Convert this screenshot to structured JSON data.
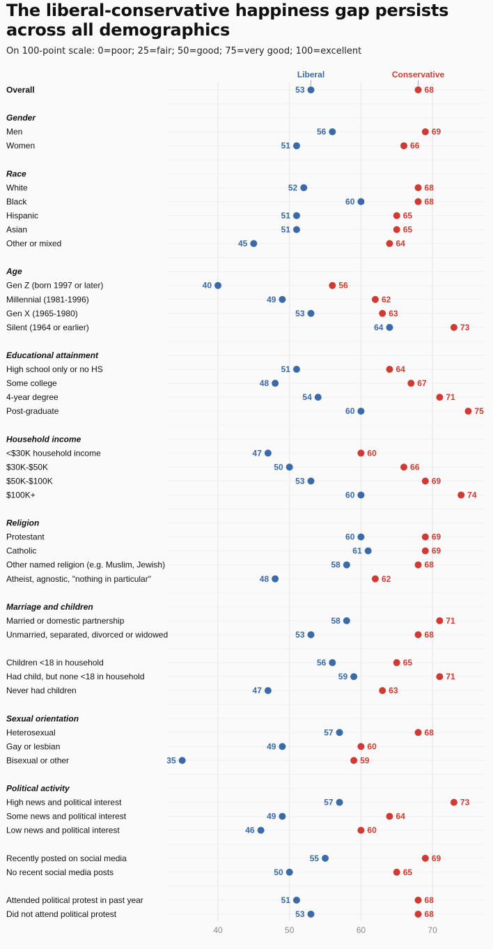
{
  "header": {
    "title": "The liberal-conservative happiness gap persists across all demographics",
    "subtitle": "On 100-point scale: 0=poor; 25=fair; 50=good; 75=very good; 100=excellent"
  },
  "colors": {
    "liberal": "#3a6aa8",
    "conservative": "#cf3b33",
    "grid": "#e3e3e3",
    "row_line": "#efefef"
  },
  "chart_data": {
    "type": "dumbbell",
    "title": "The liberal-conservative happiness gap persists across all demographics",
    "subtitle": "On 100-point scale: 0=poor; 25=fair; 50=good; 75=very good; 100=excellent",
    "xlim": [
      32.5,
      77.5
    ],
    "x_ticks": [
      40,
      50,
      60,
      70
    ],
    "grid": true,
    "legend": {
      "liberal": "Liberal",
      "conservative": "Conservative",
      "placement": "top, above first row"
    },
    "rows": [
      {
        "type": "row",
        "label": "Overall",
        "bold": true,
        "liberal": 53,
        "conservative": 68
      },
      {
        "type": "spacer"
      },
      {
        "type": "group",
        "label": "Gender"
      },
      {
        "type": "row",
        "label": "Men",
        "liberal": 56,
        "conservative": 69
      },
      {
        "type": "row",
        "label": "Women",
        "liberal": 51,
        "conservative": 66
      },
      {
        "type": "spacer"
      },
      {
        "type": "group",
        "label": "Race"
      },
      {
        "type": "row",
        "label": "White",
        "liberal": 52,
        "conservative": 68
      },
      {
        "type": "row",
        "label": "Black",
        "liberal": 60,
        "conservative": 68
      },
      {
        "type": "row",
        "label": "Hispanic",
        "liberal": 51,
        "conservative": 65
      },
      {
        "type": "row",
        "label": "Asian",
        "liberal": 51,
        "conservative": 65
      },
      {
        "type": "row",
        "label": "Other or mixed",
        "liberal": 45,
        "conservative": 64
      },
      {
        "type": "spacer"
      },
      {
        "type": "group",
        "label": "Age"
      },
      {
        "type": "row",
        "label": "Gen Z (born 1997 or later)",
        "liberal": 40,
        "conservative": 56
      },
      {
        "type": "row",
        "label": "Millennial (1981-1996)",
        "liberal": 49,
        "conservative": 62
      },
      {
        "type": "row",
        "label": "Gen X (1965-1980)",
        "liberal": 53,
        "conservative": 63
      },
      {
        "type": "row",
        "label": "Silent (1964 or earlier)",
        "liberal": 64,
        "conservative": 73
      },
      {
        "type": "spacer"
      },
      {
        "type": "group",
        "label": "Educational attainment"
      },
      {
        "type": "row",
        "label": "High school only or no HS",
        "liberal": 51,
        "conservative": 64
      },
      {
        "type": "row",
        "label": "Some college",
        "liberal": 48,
        "conservative": 67
      },
      {
        "type": "row",
        "label": "4-year degree",
        "liberal": 54,
        "conservative": 71
      },
      {
        "type": "row",
        "label": "Post-graduate",
        "liberal": 60,
        "conservative": 75
      },
      {
        "type": "spacer"
      },
      {
        "type": "group",
        "label": "Household income"
      },
      {
        "type": "row",
        "label": "<$30K household income",
        "liberal": 47,
        "conservative": 60
      },
      {
        "type": "row",
        "label": "$30K-$50K",
        "liberal": 50,
        "conservative": 66
      },
      {
        "type": "row",
        "label": "$50K-$100K",
        "liberal": 53,
        "conservative": 69
      },
      {
        "type": "row",
        "label": "$100K+",
        "liberal": 60,
        "conservative": 74
      },
      {
        "type": "spacer"
      },
      {
        "type": "group",
        "label": "Religion"
      },
      {
        "type": "row",
        "label": "Protestant",
        "liberal": 60,
        "conservative": 69
      },
      {
        "type": "row",
        "label": "Catholic",
        "liberal": 61,
        "conservative": 69
      },
      {
        "type": "row",
        "label": "Other named religion (e.g. Muslim, Jewish)",
        "liberal": 58,
        "conservative": 68
      },
      {
        "type": "row",
        "label": "Atheist, agnostic, \"nothing in particular\"",
        "liberal": 48,
        "conservative": 62
      },
      {
        "type": "spacer"
      },
      {
        "type": "group",
        "label": "Marriage and children"
      },
      {
        "type": "row",
        "label": "Married or domestic partnership",
        "liberal": 58,
        "conservative": 71
      },
      {
        "type": "row",
        "label": "Unmarried, separated, divorced or widowed",
        "liberal": 53,
        "conservative": 68
      },
      {
        "type": "spacer"
      },
      {
        "type": "row",
        "label": "Children <18 in household",
        "liberal": 56,
        "conservative": 65
      },
      {
        "type": "row",
        "label": "Had child, but none <18 in household",
        "liberal": 59,
        "conservative": 71
      },
      {
        "type": "row",
        "label": "Never had children",
        "liberal": 47,
        "conservative": 63
      },
      {
        "type": "spacer"
      },
      {
        "type": "group",
        "label": "Sexual orientation"
      },
      {
        "type": "row",
        "label": "Heterosexual",
        "liberal": 57,
        "conservative": 68
      },
      {
        "type": "row",
        "label": "Gay or lesbian",
        "liberal": 49,
        "conservative": 60
      },
      {
        "type": "row",
        "label": "Bisexual or other",
        "liberal": 35,
        "conservative": 59
      },
      {
        "type": "spacer"
      },
      {
        "type": "group",
        "label": "Political activity"
      },
      {
        "type": "row",
        "label": "High news and political interest",
        "liberal": 57,
        "conservative": 73
      },
      {
        "type": "row",
        "label": "Some news and political interest",
        "liberal": 49,
        "conservative": 64
      },
      {
        "type": "row",
        "label": "Low news and political interest",
        "liberal": 46,
        "conservative": 60
      },
      {
        "type": "spacer"
      },
      {
        "type": "row",
        "label": "Recently posted on social media",
        "liberal": 55,
        "conservative": 69
      },
      {
        "type": "row",
        "label": "No recent social media posts",
        "liberal": 50,
        "conservative": 65
      },
      {
        "type": "spacer"
      },
      {
        "type": "row",
        "label": "Attended political protest in past year",
        "liberal": 51,
        "conservative": 68
      },
      {
        "type": "row",
        "label": "Did not attend political protest",
        "liberal": 53,
        "conservative": 68
      }
    ]
  }
}
